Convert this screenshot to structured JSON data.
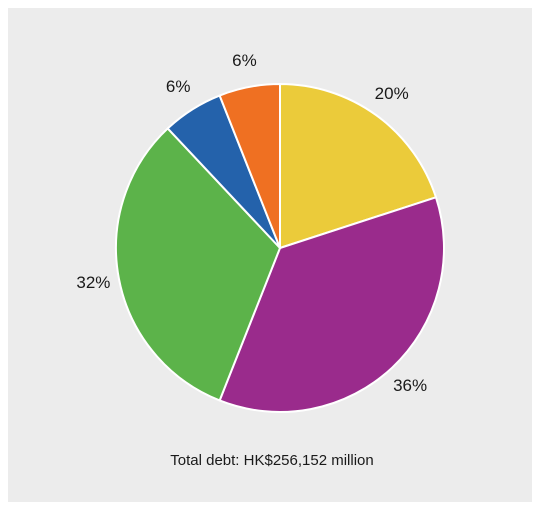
{
  "chart_data": {
    "type": "pie",
    "title": "",
    "caption": "Total debt: HK$256,152 million",
    "series": [
      {
        "values": [
          20,
          36,
          32,
          6,
          6
        ],
        "labels": [
          "20%",
          "36%",
          "32%",
          "6%",
          "6%"
        ],
        "colors": [
          "#ebcb3a",
          "#9a2b8c",
          "#5cb34a",
          "#2462ab",
          "#ef7022"
        ]
      }
    ],
    "start": "top",
    "direction": "clockwise"
  }
}
